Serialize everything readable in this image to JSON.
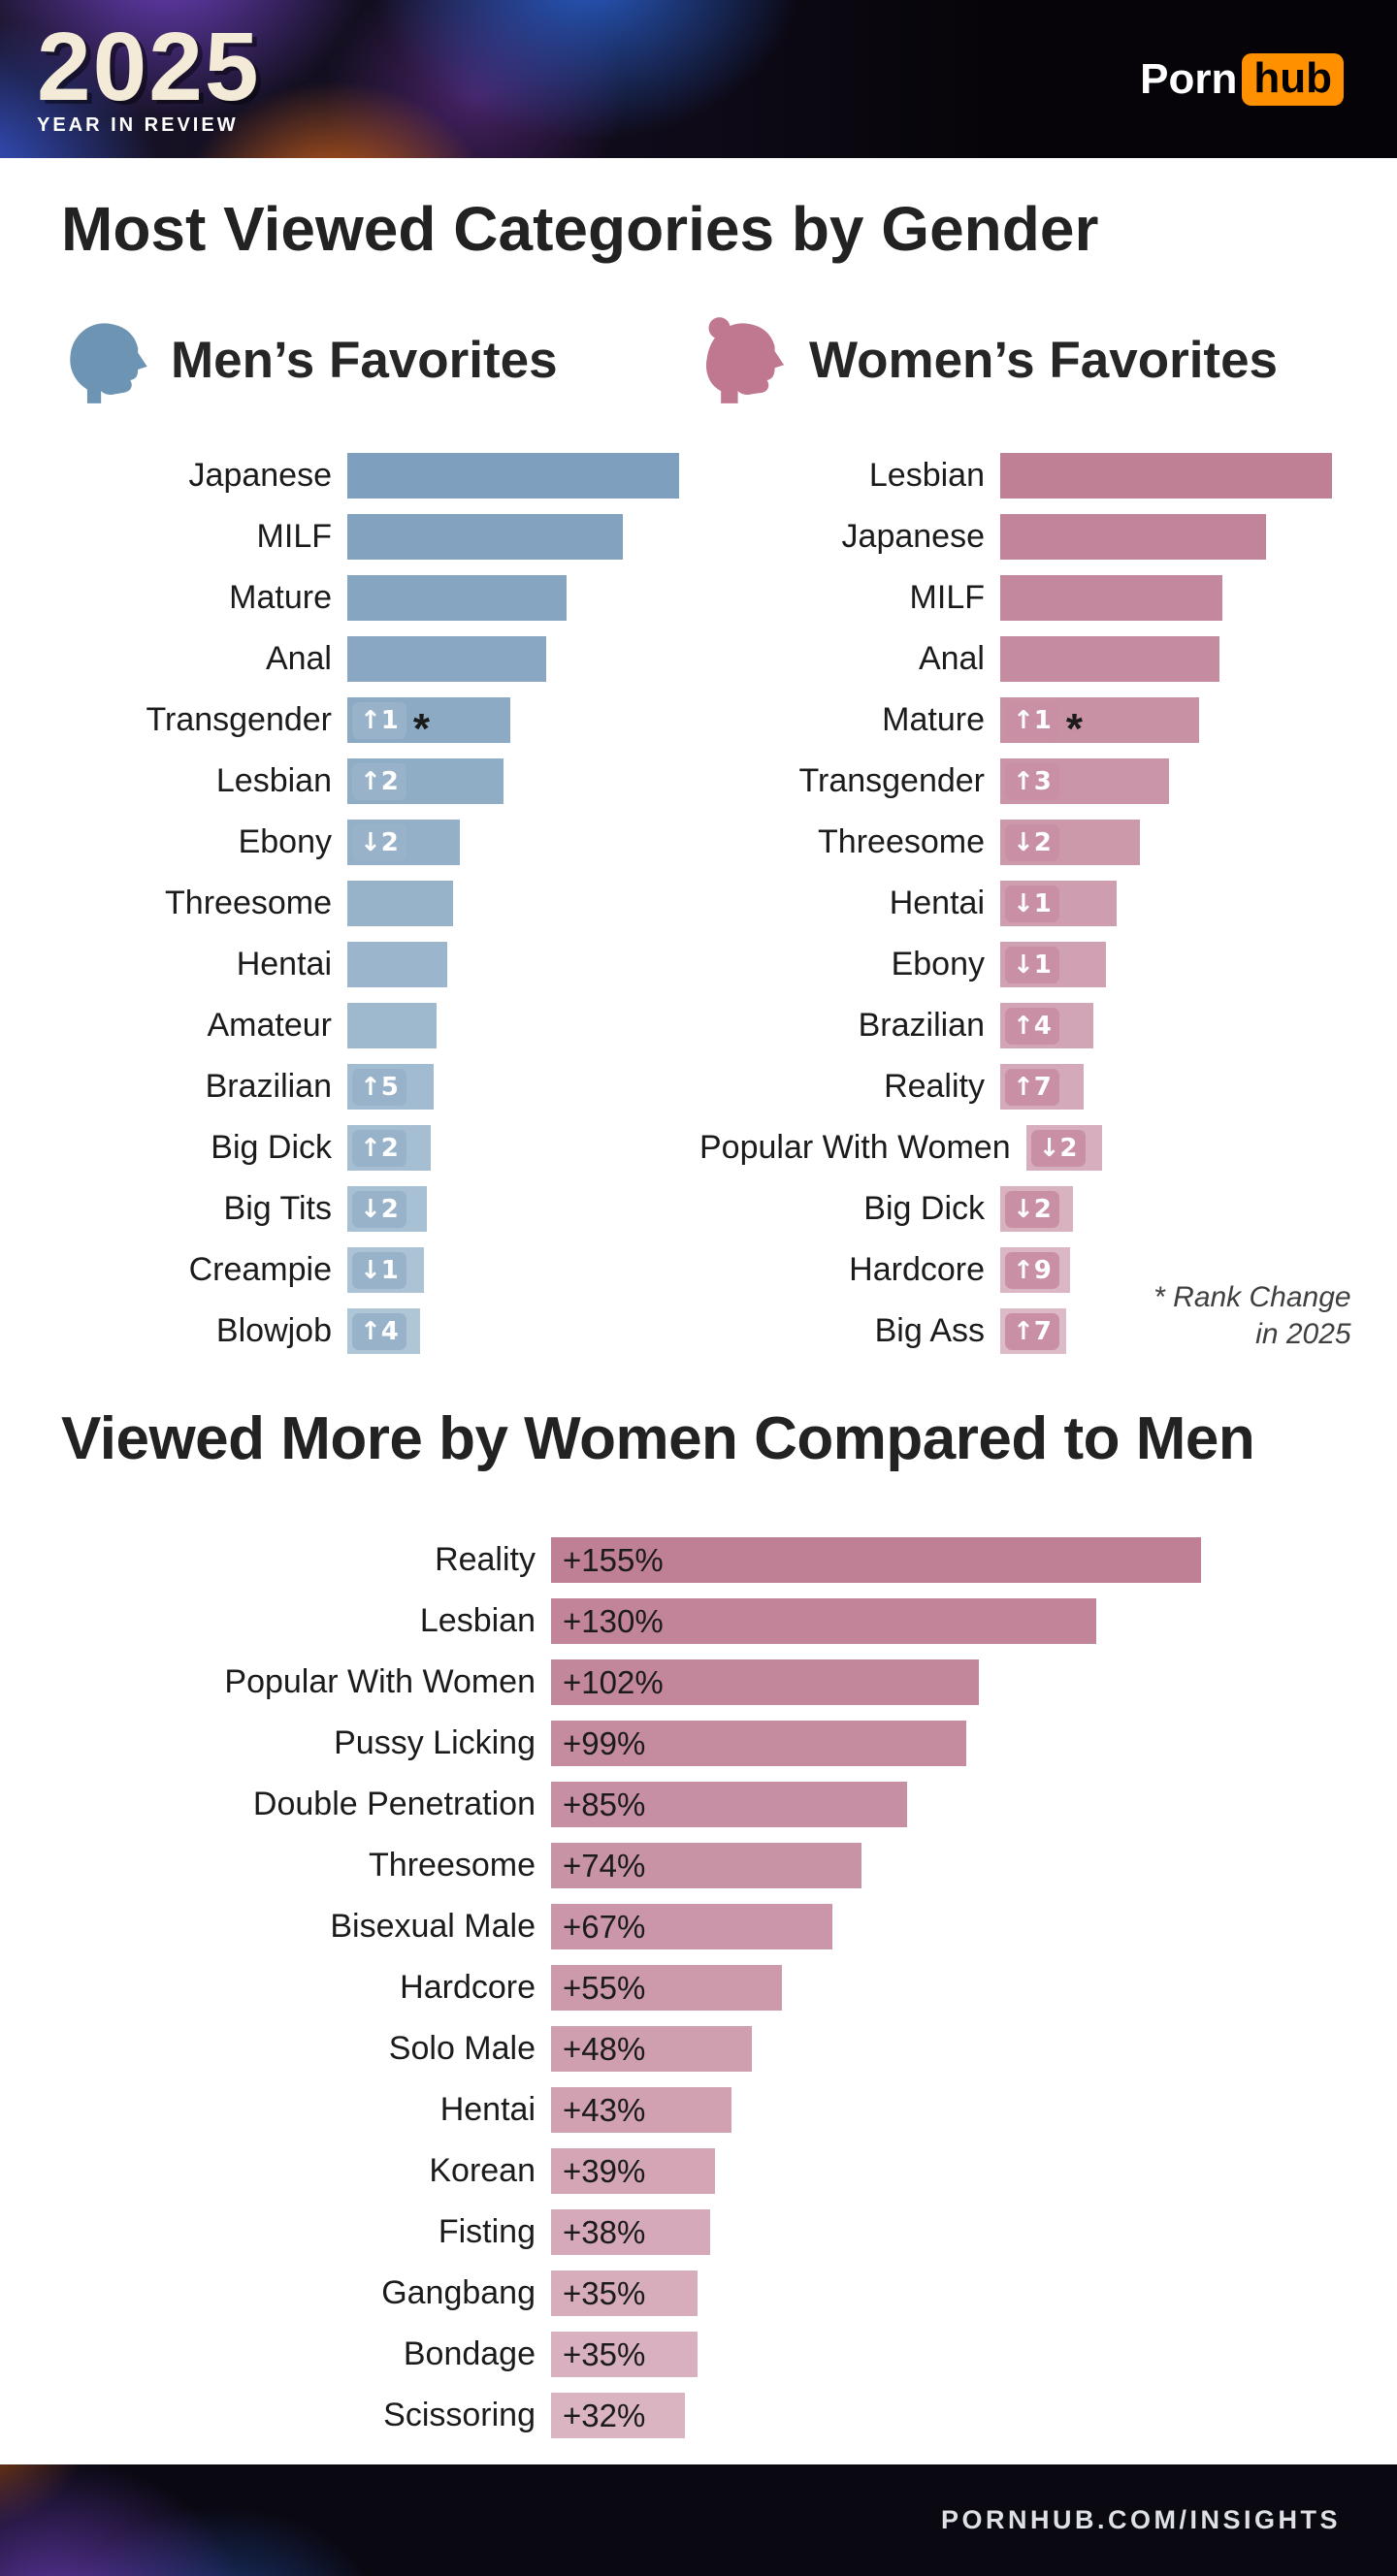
{
  "header": {
    "year": "2025",
    "tagline": "YEAR IN REVIEW",
    "logo_part1": "Porn",
    "logo_part2": "hub",
    "logo_accent_color": "#ff9000"
  },
  "titles": {
    "main": "Most Viewed Categories by Gender",
    "section2": "Viewed More by Women Compared to Men"
  },
  "rank_note": {
    "line1": "* Rank Change",
    "line2": "in 2025"
  },
  "icons": {
    "men": "man-profile-icon",
    "women": "woman-profile-icon",
    "men_color": "#6E94B4",
    "women_color": "#C07790"
  },
  "footer": {
    "text": "PORNHUB.COM/INSIGHTS"
  },
  "chart_data": [
    {
      "id": "men",
      "type": "bar",
      "orientation": "horizontal",
      "title": "Men’s Favorites",
      "grid": false,
      "values_shown": false,
      "bar_color_start": "#7E9FBD",
      "bar_color_end": "#AFC6D7",
      "chip_color": "#98B2C9",
      "rows": [
        {
          "rank": 1,
          "label": "Japanese",
          "bar_pct": 100
        },
        {
          "rank": 2,
          "label": "MILF",
          "bar_pct": 83
        },
        {
          "rank": 3,
          "label": "Mature",
          "bar_pct": 66
        },
        {
          "rank": 4,
          "label": "Anal",
          "bar_pct": 60
        },
        {
          "rank": 5,
          "label": "Transgender",
          "bar_pct": 49,
          "rank_change": "↑1",
          "asterisk": true
        },
        {
          "rank": 6,
          "label": "Lesbian",
          "bar_pct": 47,
          "rank_change": "↑2"
        },
        {
          "rank": 7,
          "label": "Ebony",
          "bar_pct": 34,
          "rank_change": "↓2"
        },
        {
          "rank": 8,
          "label": "Threesome",
          "bar_pct": 32
        },
        {
          "rank": 9,
          "label": "Hentai",
          "bar_pct": 30
        },
        {
          "rank": 10,
          "label": "Amateur",
          "bar_pct": 27
        },
        {
          "rank": 11,
          "label": "Brazilian",
          "bar_pct": 26,
          "rank_change": "↑5"
        },
        {
          "rank": 12,
          "label": "Big Dick",
          "bar_pct": 25,
          "rank_change": "↑2"
        },
        {
          "rank": 13,
          "label": "Big Tits",
          "bar_pct": 24,
          "rank_change": "↓2"
        },
        {
          "rank": 14,
          "label": "Creampie",
          "bar_pct": 23,
          "rank_change": "↓1"
        },
        {
          "rank": 15,
          "label": "Blowjob",
          "bar_pct": 22,
          "rank_change": "↑4"
        }
      ]
    },
    {
      "id": "women",
      "type": "bar",
      "orientation": "horizontal",
      "title": "Women’s Favorites",
      "grid": false,
      "values_shown": false,
      "annotation": "* Rank Change in 2025",
      "bar_color_start": "#BF8096",
      "bar_color_end": "#DDBAC7",
      "chip_color": "#C88FA5",
      "rows": [
        {
          "rank": 1,
          "label": "Lesbian",
          "bar_pct": 100
        },
        {
          "rank": 2,
          "label": "Japanese",
          "bar_pct": 80
        },
        {
          "rank": 3,
          "label": "MILF",
          "bar_pct": 67
        },
        {
          "rank": 4,
          "label": "Anal",
          "bar_pct": 66
        },
        {
          "rank": 5,
          "label": "Mature",
          "bar_pct": 60,
          "rank_change": "↑1",
          "asterisk": true
        },
        {
          "rank": 6,
          "label": "Transgender",
          "bar_pct": 51,
          "rank_change": "↑3"
        },
        {
          "rank": 7,
          "label": "Threesome",
          "bar_pct": 42,
          "rank_change": "↓2"
        },
        {
          "rank": 8,
          "label": "Hentai",
          "bar_pct": 35,
          "rank_change": "↓1"
        },
        {
          "rank": 9,
          "label": "Ebony",
          "bar_pct": 32,
          "rank_change": "↓1"
        },
        {
          "rank": 10,
          "label": "Brazilian",
          "bar_pct": 28,
          "rank_change": "↑4"
        },
        {
          "rank": 11,
          "label": "Reality",
          "bar_pct": 25,
          "rank_change": "↑7"
        },
        {
          "rank": 12,
          "label": "Popular With Women",
          "bar_pct": 23,
          "rank_change": "↓2"
        },
        {
          "rank": 13,
          "label": "Big Dick",
          "bar_pct": 22,
          "rank_change": "↓2"
        },
        {
          "rank": 14,
          "label": "Hardcore",
          "bar_pct": 21,
          "rank_change": "↑9"
        },
        {
          "rank": 15,
          "label": "Big Ass",
          "bar_pct": 20,
          "rank_change": "↑7"
        }
      ]
    },
    {
      "id": "women_vs_men",
      "type": "bar",
      "orientation": "horizontal",
      "title": "Viewed More by Women Compared to Men",
      "grid": false,
      "value_unit": "%",
      "max_value": 155,
      "bar_color_start": "#BF8096",
      "bar_color_end": "#DBB4C2",
      "rows": [
        {
          "label": "Reality",
          "value": 155,
          "display": "+155%"
        },
        {
          "label": "Lesbian",
          "value": 130,
          "display": "+130%"
        },
        {
          "label": "Popular With Women",
          "value": 102,
          "display": "+102%"
        },
        {
          "label": "Pussy Licking",
          "value": 99,
          "display": "+99%"
        },
        {
          "label": "Double Penetration",
          "value": 85,
          "display": "+85%"
        },
        {
          "label": "Threesome",
          "value": 74,
          "display": "+74%"
        },
        {
          "label": "Bisexual Male",
          "value": 67,
          "display": "+67%"
        },
        {
          "label": "Hardcore",
          "value": 55,
          "display": "+55%"
        },
        {
          "label": "Solo Male",
          "value": 48,
          "display": "+48%"
        },
        {
          "label": "Hentai",
          "value": 43,
          "display": "+43%"
        },
        {
          "label": "Korean",
          "value": 39,
          "display": "+39%"
        },
        {
          "label": "Fisting",
          "value": 38,
          "display": "+38%"
        },
        {
          "label": "Gangbang",
          "value": 35,
          "display": "+35%"
        },
        {
          "label": "Bondage",
          "value": 35,
          "display": "+35%"
        },
        {
          "label": "Scissoring",
          "value": 32,
          "display": "+32%"
        }
      ]
    }
  ]
}
